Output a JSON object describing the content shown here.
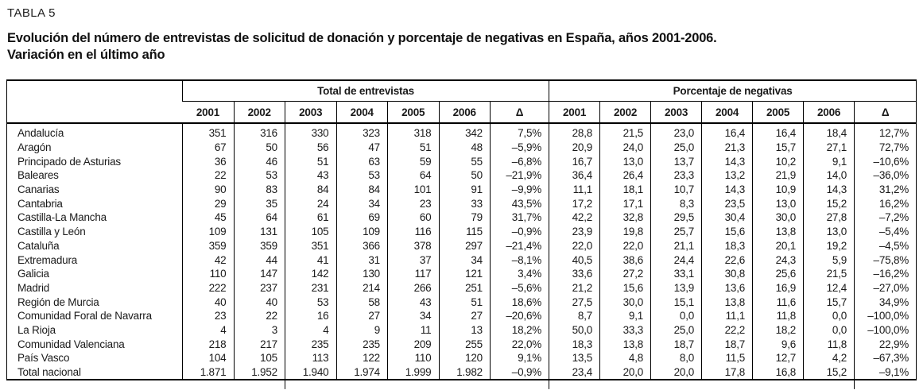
{
  "page": {
    "label": "TABLA 5",
    "title_line1": "Evolución del número de entrevistas de solicitud de donación y porcentaje de negativas en España, años 2001-2006.",
    "title_line2": "Variación en el último año"
  },
  "colors": {
    "background": "#ffffff",
    "text": "#1a1a1a",
    "border": "#000000"
  },
  "table": {
    "group_headers": [
      "Total de entrevistas",
      "Porcentaje de negativas"
    ],
    "year_headers": [
      "2001",
      "2002",
      "2003",
      "2004",
      "2005",
      "2006",
      "Δ"
    ],
    "rows": [
      {
        "region": "Andalucía",
        "entrevistas": [
          "351",
          "316",
          "330",
          "323",
          "318",
          "342",
          "7,5%"
        ],
        "negativas": [
          "28,8",
          "21,5",
          "23,0",
          "16,4",
          "16,4",
          "18,4",
          "12,7%"
        ]
      },
      {
        "region": "Aragón",
        "entrevistas": [
          "67",
          "50",
          "56",
          "47",
          "51",
          "48",
          "–5,9%"
        ],
        "negativas": [
          "20,9",
          "24,0",
          "25,0",
          "21,3",
          "15,7",
          "27,1",
          "72,7%"
        ]
      },
      {
        "region": "Principado de Asturias",
        "entrevistas": [
          "36",
          "46",
          "51",
          "63",
          "59",
          "55",
          "–6,8%"
        ],
        "negativas": [
          "16,7",
          "13,0",
          "13,7",
          "14,3",
          "10,2",
          "9,1",
          "–10,6%"
        ]
      },
      {
        "region": "Baleares",
        "entrevistas": [
          "22",
          "53",
          "43",
          "53",
          "64",
          "50",
          "–21,9%"
        ],
        "negativas": [
          "36,4",
          "26,4",
          "23,3",
          "13,2",
          "21,9",
          "14,0",
          "–36,0%"
        ]
      },
      {
        "region": "Canarias",
        "entrevistas": [
          "90",
          "83",
          "84",
          "84",
          "101",
          "91",
          "–9,9%"
        ],
        "negativas": [
          "11,1",
          "18,1",
          "10,7",
          "14,3",
          "10,9",
          "14,3",
          "31,2%"
        ]
      },
      {
        "region": "Cantabria",
        "entrevistas": [
          "29",
          "35",
          "24",
          "34",
          "23",
          "33",
          "43,5%"
        ],
        "negativas": [
          "17,2",
          "17,1",
          "8,3",
          "23,5",
          "13,0",
          "15,2",
          "16,2%"
        ]
      },
      {
        "region": "Castilla-La Mancha",
        "entrevistas": [
          "45",
          "64",
          "61",
          "69",
          "60",
          "79",
          "31,7%"
        ],
        "negativas": [
          "42,2",
          "32,8",
          "29,5",
          "30,4",
          "30,0",
          "27,8",
          "–7,2%"
        ]
      },
      {
        "region": "Castilla y León",
        "entrevistas": [
          "109",
          "131",
          "105",
          "109",
          "116",
          "115",
          "–0,9%"
        ],
        "negativas": [
          "23,9",
          "19,8",
          "25,7",
          "15,6",
          "13,8",
          "13,0",
          "–5,4%"
        ]
      },
      {
        "region": "Cataluña",
        "entrevistas": [
          "359",
          "359",
          "351",
          "366",
          "378",
          "297",
          "–21,4%"
        ],
        "negativas": [
          "22,0",
          "22,0",
          "21,1",
          "18,3",
          "20,1",
          "19,2",
          "–4,5%"
        ]
      },
      {
        "region": "Extremadura",
        "entrevistas": [
          "42",
          "44",
          "41",
          "31",
          "37",
          "34",
          "–8,1%"
        ],
        "negativas": [
          "40,5",
          "38,6",
          "24,4",
          "22,6",
          "24,3",
          "5,9",
          "–75,8%"
        ]
      },
      {
        "region": "Galicia",
        "entrevistas": [
          "110",
          "147",
          "142",
          "130",
          "117",
          "121",
          "3,4%"
        ],
        "negativas": [
          "33,6",
          "27,2",
          "33,1",
          "30,8",
          "25,6",
          "21,5",
          "–16,2%"
        ]
      },
      {
        "region": "Madrid",
        "entrevistas": [
          "222",
          "237",
          "231",
          "214",
          "266",
          "251",
          "–5,6%"
        ],
        "negativas": [
          "21,2",
          "15,6",
          "13,9",
          "13,6",
          "16,9",
          "12,4",
          "–27,0%"
        ]
      },
      {
        "region": "Región de Murcia",
        "entrevistas": [
          "40",
          "40",
          "53",
          "58",
          "43",
          "51",
          "18,6%"
        ],
        "negativas": [
          "27,5",
          "30,0",
          "15,1",
          "13,8",
          "11,6",
          "15,7",
          "34,9%"
        ]
      },
      {
        "region": "Comunidad Foral de Navarra",
        "entrevistas": [
          "23",
          "22",
          "16",
          "27",
          "34",
          "27",
          "–20,6%"
        ],
        "negativas": [
          "8,7",
          "9,1",
          "0,0",
          "11,1",
          "11,8",
          "0,0",
          "–100,0%"
        ]
      },
      {
        "region": "La Rioja",
        "entrevistas": [
          "4",
          "3",
          "4",
          "9",
          "11",
          "13",
          "18,2%"
        ],
        "negativas": [
          "50,0",
          "33,3",
          "25,0",
          "22,2",
          "18,2",
          "0,0",
          "–100,0%"
        ]
      },
      {
        "region": "Comunidad Valenciana",
        "entrevistas": [
          "218",
          "217",
          "235",
          "235",
          "209",
          "255",
          "22,0%"
        ],
        "negativas": [
          "18,3",
          "13,8",
          "18,7",
          "18,7",
          "9,6",
          "11,8",
          "22,9%"
        ]
      },
      {
        "region": "País Vasco",
        "entrevistas": [
          "104",
          "105",
          "113",
          "122",
          "110",
          "120",
          "9,1%"
        ],
        "negativas": [
          "13,5",
          "4,8",
          "8,0",
          "11,5",
          "12,7",
          "4,2",
          "–67,3%"
        ]
      },
      {
        "region": "Total nacional",
        "entrevistas": [
          "1.871",
          "1.952",
          "1.940",
          "1.974",
          "1.999",
          "1.982",
          "–0,9%"
        ],
        "negativas": [
          "23,4",
          "20,0",
          "20,0",
          "17,8",
          "16,8",
          "15,2",
          "–9,1%"
        ]
      }
    ]
  }
}
